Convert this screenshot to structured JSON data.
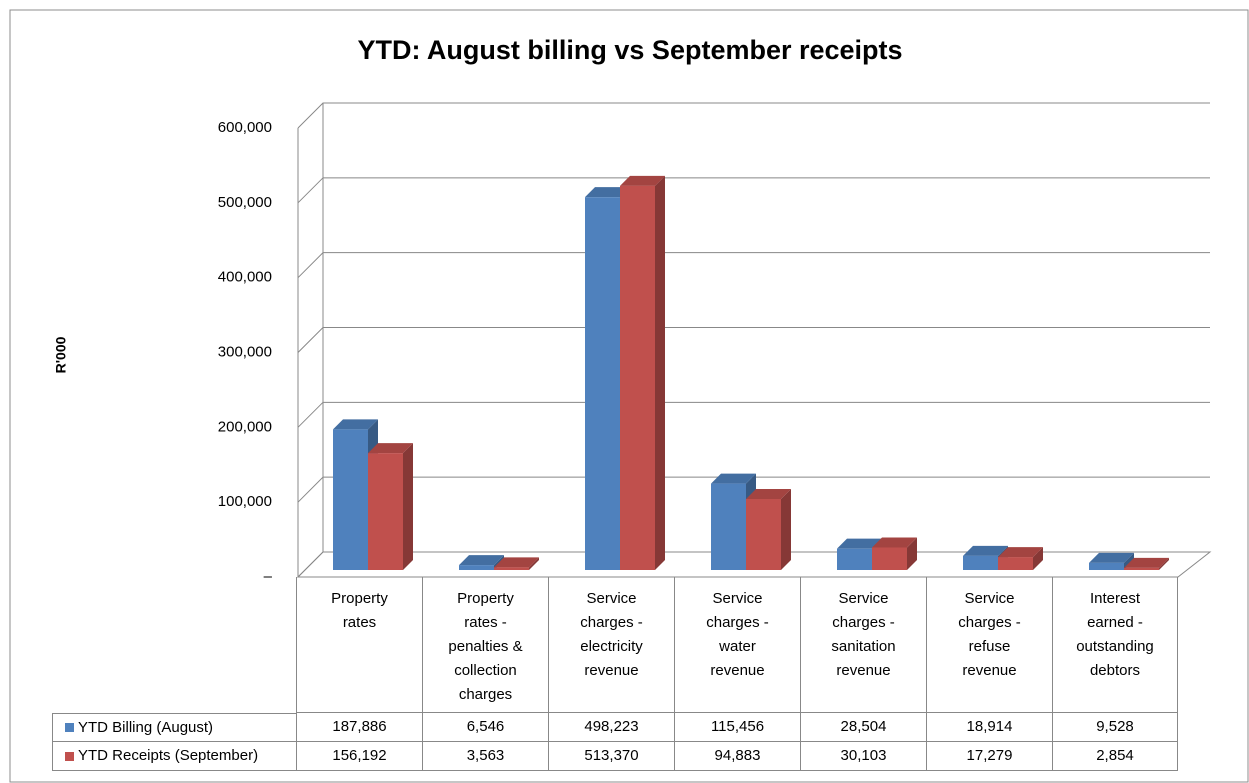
{
  "chart_data": {
    "type": "bar3d",
    "title": "YTD: August billing vs September receipts",
    "y_label": "R'000",
    "categories": [
      "Property rates",
      "Property rates - penalties & collection charges",
      "Service charges - electricity revenue",
      "Service charges - water revenue",
      "Service charges - sanitation revenue",
      "Service charges - refuse revenue",
      "Interest earned - outstanding debtors"
    ],
    "series": [
      {
        "name": "YTD Billing (August)",
        "color": "#4f81bd",
        "values": [
          187886,
          6546,
          498223,
          115456,
          28504,
          18914,
          9528
        ],
        "value_labels": [
          "187,886",
          "6,546",
          "498,223",
          "115,456",
          "28,504",
          "18,914",
          "9,528"
        ]
      },
      {
        "name": "YTD Receipts (September)",
        "color": "#c0504d",
        "values": [
          156192,
          3563,
          513370,
          94883,
          30103,
          17279,
          2854
        ],
        "value_labels": [
          "156,192",
          "3,563",
          "513,370",
          "94,883",
          "30,103",
          "17,279",
          "2,854"
        ]
      }
    ],
    "ylim": [
      0,
      600000
    ],
    "yticks": [
      {
        "value": 0,
        "label": "–"
      },
      {
        "value": 100000,
        "label": "100,000"
      },
      {
        "value": 200000,
        "label": "200,000"
      },
      {
        "value": 300000,
        "label": "300,000"
      },
      {
        "value": 400000,
        "label": "400,000"
      },
      {
        "value": 500000,
        "label": "500,000"
      },
      {
        "value": 600000,
        "label": "600,000"
      }
    ],
    "grid": true
  }
}
